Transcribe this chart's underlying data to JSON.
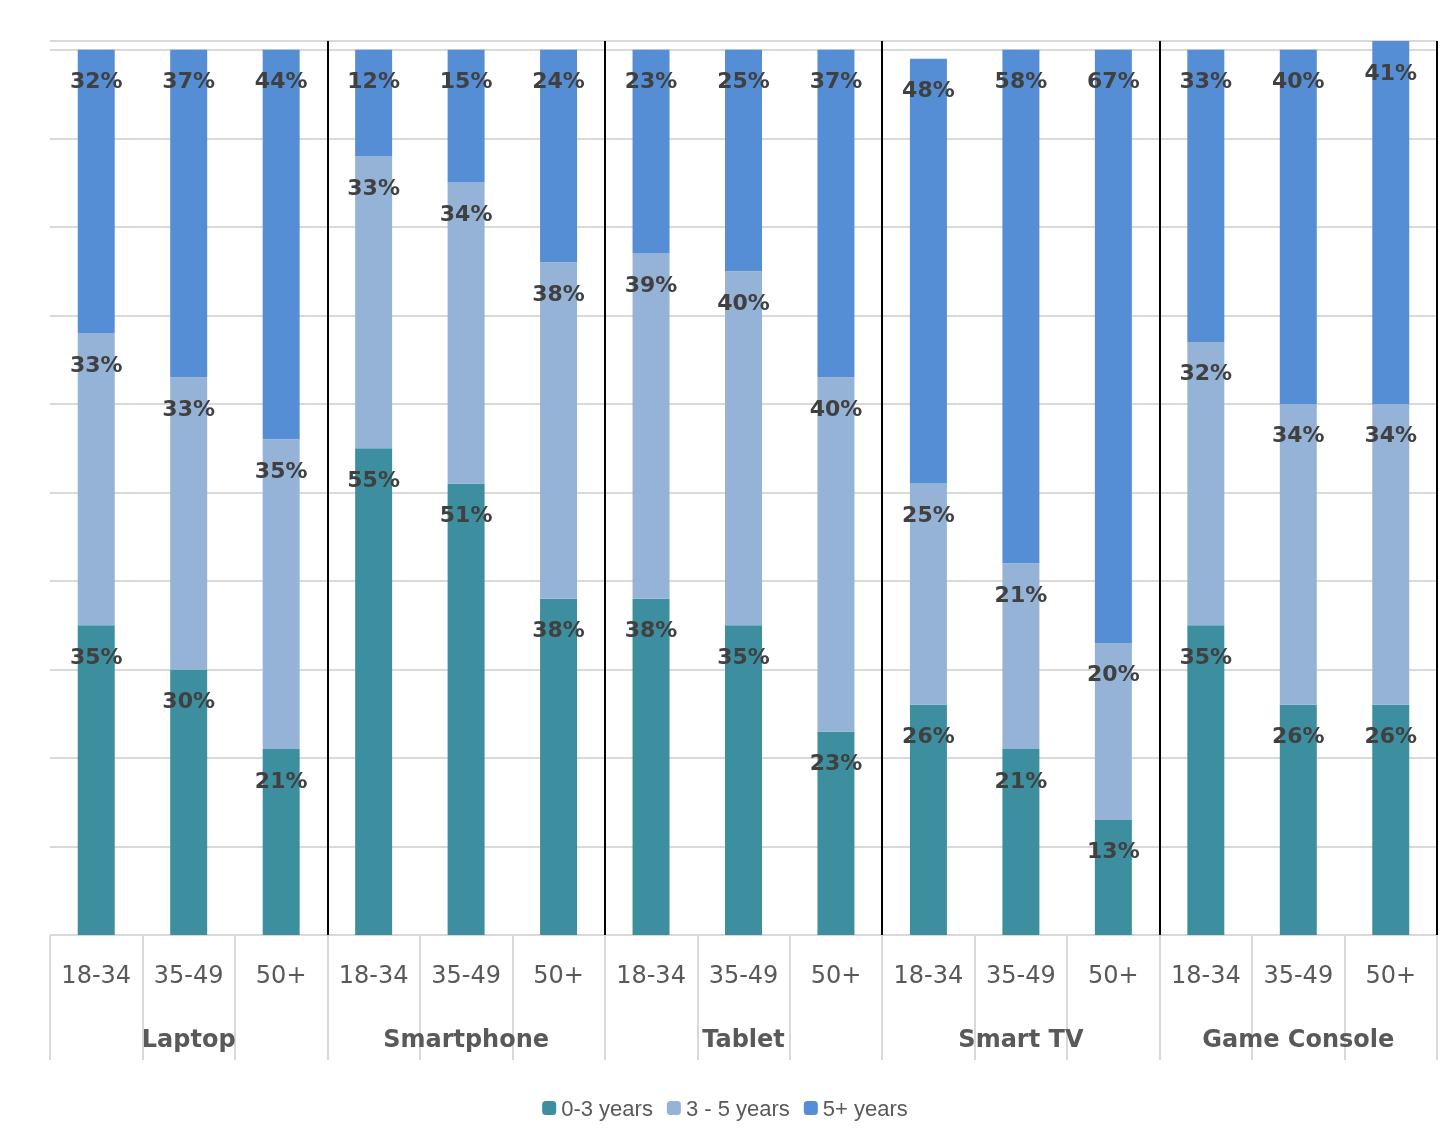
{
  "chart_data": {
    "type": "bar",
    "stacked": true,
    "legend": "bottom",
    "grid": "y",
    "categories": [
      "18-34",
      "35-49",
      "50+",
      "18-34",
      "35-49",
      "50+",
      "18-34",
      "35-49",
      "50+",
      "18-34",
      "35-49",
      "50+",
      "18-34",
      "35-49",
      "50+"
    ],
    "annotations": [
      "Laptop",
      "Smartphone",
      "Tablet",
      "Smart TV",
      "Game Console"
    ],
    "series": [
      {
        "name": "0-3 years",
        "color": "#3d8fa0",
        "values": [
          35,
          30,
          21,
          55,
          51,
          38,
          38,
          35,
          23,
          26,
          21,
          13,
          35,
          26,
          26
        ],
        "value_labels": [
          "35%",
          "30%",
          "21%",
          "55%",
          "51%",
          "38%",
          "38%",
          "35%",
          "23%",
          "26%",
          "21%",
          "13%",
          "35%",
          "26%",
          "26%"
        ]
      },
      {
        "name": "3 - 5 years",
        "color": "#95b3d7",
        "values": [
          33,
          33,
          35,
          33,
          34,
          38,
          39,
          40,
          40,
          25,
          21,
          20,
          32,
          34,
          34
        ],
        "value_labels": [
          "33%",
          "33%",
          "35%",
          "33%",
          "34%",
          "38%",
          "39%",
          "40%",
          "40%",
          "25%",
          "21%",
          "20%",
          "32%",
          "34%",
          "34%"
        ]
      },
      {
        "name": "5+ years",
        "color": "#558ed5",
        "values": [
          32,
          37,
          44,
          12,
          15,
          24,
          23,
          25,
          37,
          48,
          58,
          67,
          33,
          40,
          41
        ],
        "value_labels": [
          "32%",
          "37%",
          "44%",
          "12%",
          "15%",
          "24%",
          "23%",
          "25%",
          "37%",
          "48%",
          "58%",
          "67%",
          "33%",
          "40%",
          "41%"
        ]
      }
    ]
  }
}
